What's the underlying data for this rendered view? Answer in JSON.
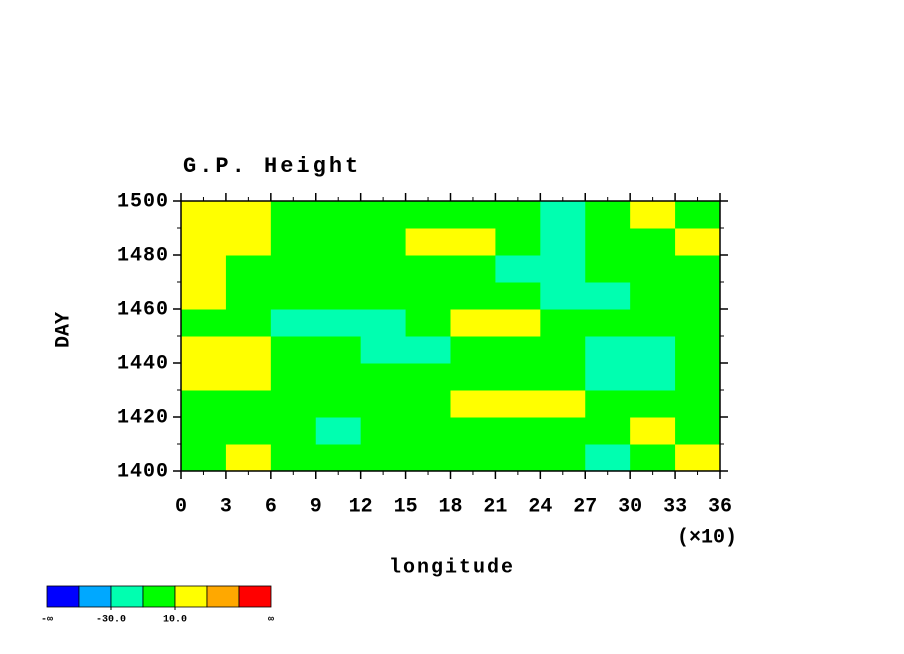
{
  "chart_data": {
    "type": "contour",
    "title": "G.P. Height",
    "xlabel": "longitude",
    "ylabel": "DAY",
    "x_multiplier": "(×10)",
    "xlim": [
      0,
      36
    ],
    "ylim": [
      1400,
      1500
    ],
    "xticks": [
      0,
      3,
      6,
      9,
      12,
      15,
      18,
      21,
      24,
      27,
      30,
      33,
      36
    ],
    "yticks": [
      1400,
      1420,
      1440,
      1460,
      1480,
      1500
    ],
    "x_edges": [
      0,
      3,
      6,
      9,
      12,
      15,
      18,
      21,
      24,
      27,
      30,
      33,
      36
    ],
    "y_edges": [
      1400,
      1410,
      1420,
      1430,
      1440,
      1450,
      1460,
      1470,
      1480,
      1490,
      1500
    ],
    "z": [
      [
        5,
        12,
        3,
        -2,
        0,
        8,
        4,
        6,
        -5,
        -12,
        2,
        10
      ],
      [
        2,
        -3,
        -8,
        -12,
        -5,
        0,
        6,
        4,
        -2,
        8,
        15,
        5
      ],
      [
        0,
        5,
        -2,
        -6,
        -10,
        -4,
        18,
        22,
        12,
        0,
        -6,
        2
      ],
      [
        20,
        25,
        8,
        -2,
        -8,
        -4,
        6,
        2,
        -8,
        -14,
        -16,
        -10
      ],
      [
        15,
        10,
        2,
        -6,
        -12,
        -14,
        -4,
        0,
        -10,
        -16,
        -12,
        -6
      ],
      [
        4,
        -8,
        -14,
        -18,
        -12,
        6,
        16,
        20,
        8,
        -4,
        -10,
        -2
      ],
      [
        18,
        6,
        -4,
        -8,
        -10,
        -6,
        2,
        0,
        -12,
        -18,
        -10,
        4
      ],
      [
        14,
        2,
        -2,
        4,
        -6,
        -4,
        -8,
        -14,
        -16,
        -10,
        2,
        8
      ],
      [
        20,
        16,
        6,
        0,
        2,
        14,
        18,
        -6,
        -12,
        -4,
        6,
        10
      ],
      [
        16,
        12,
        0,
        -4,
        -2,
        4,
        8,
        2,
        -14,
        -10,
        14,
        6
      ]
    ],
    "levels": [
      -50,
      -30,
      -10,
      10,
      30,
      50
    ],
    "colors": [
      "#0000ff",
      "#00a8ff",
      "#00ffb0",
      "#00ff00",
      "#ffff00",
      "#ffa800",
      "#ff0000"
    ],
    "colorbar_min_label": "-∞",
    "colorbar_max_label": "∞",
    "colorbar_ticks": [
      {
        "value": -30,
        "label": "-30.0"
      },
      {
        "value": 10,
        "label": "10.0"
      }
    ]
  }
}
